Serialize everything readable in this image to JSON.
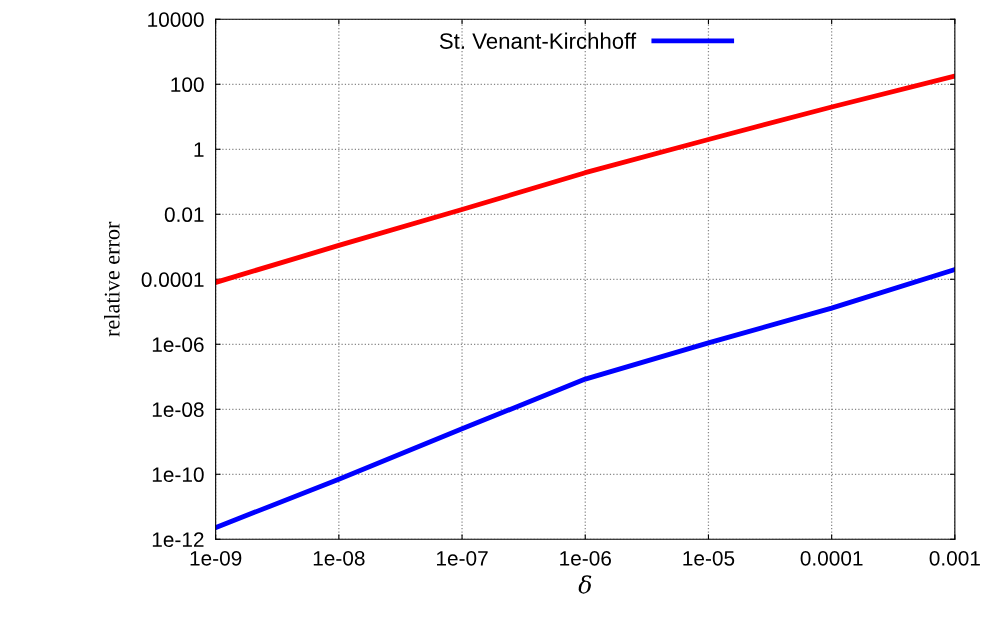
{
  "chart_data": {
    "type": "line",
    "xlabel": "δ",
    "ylabel": "relative error",
    "log": "xy",
    "grid": true,
    "legend": "top",
    "line_style": "solid",
    "xlim": [
      1e-09,
      0.001
    ],
    "ylim": [
      1e-12,
      10000
    ],
    "xticks": [
      {
        "value": 1e-09,
        "label": "1e-09"
      },
      {
        "value": 1e-08,
        "label": "1e-08"
      },
      {
        "value": 1e-07,
        "label": "1e-07"
      },
      {
        "value": 1e-06,
        "label": "1e-06"
      },
      {
        "value": 1e-05,
        "label": "1e-05"
      },
      {
        "value": 0.0001,
        "label": "0.0001"
      },
      {
        "value": 0.001,
        "label": "0.001"
      }
    ],
    "yticks": [
      {
        "value": 1e-12,
        "label": "1e-12"
      },
      {
        "value": 1e-10,
        "label": "1e-10"
      },
      {
        "value": 1e-08,
        "label": "1e-08"
      },
      {
        "value": 1e-06,
        "label": "1e-06"
      },
      {
        "value": 0.0001,
        "label": "0.0001"
      },
      {
        "value": 0.01,
        "label": "0.01"
      },
      1,
      100,
      10000
    ],
    "series": [
      {
        "name": "St. Venant-Kirchhoff",
        "color": "#0000ff",
        "x": [
          1e-09,
          1e-08,
          1e-07,
          1e-06,
          1e-05,
          0.0001,
          0.001
        ],
        "values": [
          2.3e-12,
          7e-11,
          2.5e-09,
          8.5e-08,
          1.1e-06,
          1.3e-05,
          0.0002
        ]
      },
      {
        "color": "#ff0000",
        "x": [
          1e-09,
          1e-08,
          1e-07,
          1e-06,
          1e-05,
          0.0001,
          0.001
        ],
        "values": [
          8e-05,
          0.0011,
          0.014,
          0.19,
          2.0,
          20,
          178
        ]
      }
    ]
  }
}
